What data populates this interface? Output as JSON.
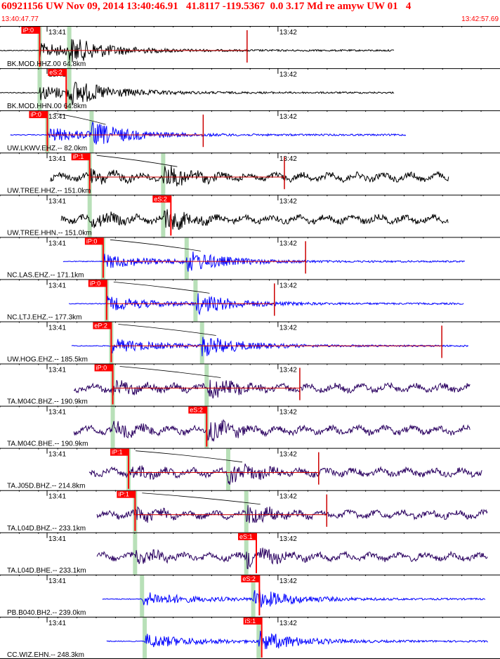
{
  "header": {
    "title": "60921156 UW Nov 09, 2014 13:40:46.91   41.8117 -119.5367  0.0 3.17 Md re amyw UW 01   4",
    "start_time": "13:40:47.77",
    "end_time": "13:42:57.69"
  },
  "colors": {
    "header_text": "#ff0000",
    "pick_flag": "#ff0000",
    "pick_text": "#ffffff",
    "theoretical_arrival": "#b8e0b8",
    "travel_time_curve": "#000000",
    "coda_line": "#cc0000",
    "black_trace": "#000000",
    "blue_trace": "#0000ff",
    "purple_trace": "#2a0060"
  },
  "chart_data": {
    "type": "line",
    "title": "60921156 UW Nov 09, 2014 13:40:46.91   41.8117 -119.5367  0.0 3.17 Md re amyw UW 01   4",
    "xlabel": "",
    "ylabel": "",
    "x_unit": "seconds after 13:40:47.77",
    "xlim": [
      0,
      129.92
    ],
    "minute_marks": [
      {
        "label": "13:41",
        "t": 12.23
      },
      {
        "label": "13:42",
        "t": 72.23
      }
    ],
    "grid": false,
    "series": [
      {
        "label": "BK.MOD.HHZ.00 64.8km",
        "color": "black",
        "trace_start": 0,
        "trace_end": 102.5,
        "pick": {
          "label": "iP:0",
          "t": 10.3
        },
        "theo_p": 10.3,
        "theo_s": 18.0,
        "coda_end": 64.2
      },
      {
        "label": "BK.MOD.HHN.00 64.8km",
        "color": "black",
        "trace_start": 0,
        "trace_end": 102.5,
        "pick": {
          "label": "eS:2",
          "t": 17.2
        },
        "theo_p": 10.3,
        "theo_s": 18.0
      },
      {
        "label": "UW.LKWV.EHZ.-- 82.0km",
        "color": "blue",
        "trace_start": 2.7,
        "trace_end": 105.5,
        "pick": {
          "label": "iP:0",
          "t": 12.3
        },
        "theo_p": 12.3,
        "theo_s": 23.8,
        "coda_end": 52.8
      },
      {
        "label": "UW.TREE.HHZ.-- 151.0km",
        "color": "black",
        "trace_start": 13.1,
        "trace_end": 116.6,
        "pick": {
          "label": "iP:1",
          "t": 23.3
        },
        "theo_p": 23.3,
        "theo_s": 42.4,
        "coda_end": 73.9
      },
      {
        "label": "UW.TREE.HHN.-- 151.0km",
        "color": "black",
        "trace_start": 15.9,
        "trace_end": 116.6,
        "pick": {
          "label": "eS:2",
          "t": 44.4
        },
        "theo_p": 23.3,
        "theo_s": 42.4
      },
      {
        "label": "NC.LAS.EHZ.-- 171.1km",
        "color": "blue",
        "trace_start": 16.4,
        "trace_end": 120.8,
        "pick": {
          "label": "iP:0",
          "t": 26.8
        },
        "theo_p": 26.8,
        "theo_s": 48.5,
        "coda_end": 79.4
      },
      {
        "label": "NC.LTJ.EHZ.-- 177.3km",
        "color": "blue",
        "trace_start": 17.9,
        "trace_end": 120.5,
        "pick": {
          "label": "iP:0",
          "t": 27.7
        },
        "theo_p": 27.7,
        "theo_s": 50.8,
        "coda_end": 71.3
      },
      {
        "label": "UW.HOG.EHZ.-- 185.5km",
        "color": "blue",
        "trace_start": 18.6,
        "trace_end": 121.7,
        "pick": {
          "label": "eP:2",
          "t": 28.9
        },
        "theo_p": 28.9,
        "theo_s": 52.5,
        "coda_end": 114.8
      },
      {
        "label": "TA.M04C.BHZ.-- 190.9km",
        "color": "purple",
        "trace_start": 19.2,
        "trace_end": 122.2,
        "pick": {
          "label": "iP:0",
          "t": 29.3
        },
        "theo_p": 29.3,
        "theo_s": 53.7,
        "coda_end": 77.9
      },
      {
        "label": "TA.M04C.BHE.-- 190.9km",
        "color": "purple",
        "trace_start": 19.2,
        "trace_end": 122.2,
        "pick": {
          "label": "eS:2",
          "t": 53.7
        },
        "theo_p": 29.3,
        "theo_s": 53.7
      },
      {
        "label": "TA.J05D.BHZ.-- 214.8km",
        "color": "purple",
        "trace_start": 23.2,
        "trace_end": 125.3,
        "pick": {
          "label": "iP:1",
          "t": 33.4
        },
        "theo_p": 33.4,
        "theo_s": 59.3,
        "coda_end": 82.8
      },
      {
        "label": "TA.L04D.BHZ.-- 233.1km",
        "color": "purple",
        "trace_start": 25.2,
        "trace_end": 126.8,
        "pick": {
          "label": "iP:1",
          "t": 35.1
        },
        "theo_p": 35.1,
        "theo_s": 64.0,
        "coda_end": 84.9
      },
      {
        "label": "TA.L04D.BHE.-- 233.1km",
        "color": "purple",
        "trace_start": 25.2,
        "trace_end": 126.8,
        "pick": {
          "label": "eS:1",
          "t": 66.6
        },
        "theo_p": 35.1,
        "theo_s": 64.0
      },
      {
        "label": "PB.B040.BH2.-- 239.0km",
        "color": "blue",
        "trace_start": 26.6,
        "trace_end": 126.1,
        "pick": {
          "label": "eS:2",
          "t": 67.4
        },
        "theo_p": 36.9,
        "theo_s": 65.8
      },
      {
        "label": "CC.WIZ.EHN.-- 248.3km",
        "color": "blue",
        "trace_start": 27.7,
        "trace_end": 126.8,
        "pick": {
          "label": "iS:1",
          "t": 68.0
        },
        "theo_p": 37.6,
        "theo_s": 67.2
      }
    ]
  }
}
